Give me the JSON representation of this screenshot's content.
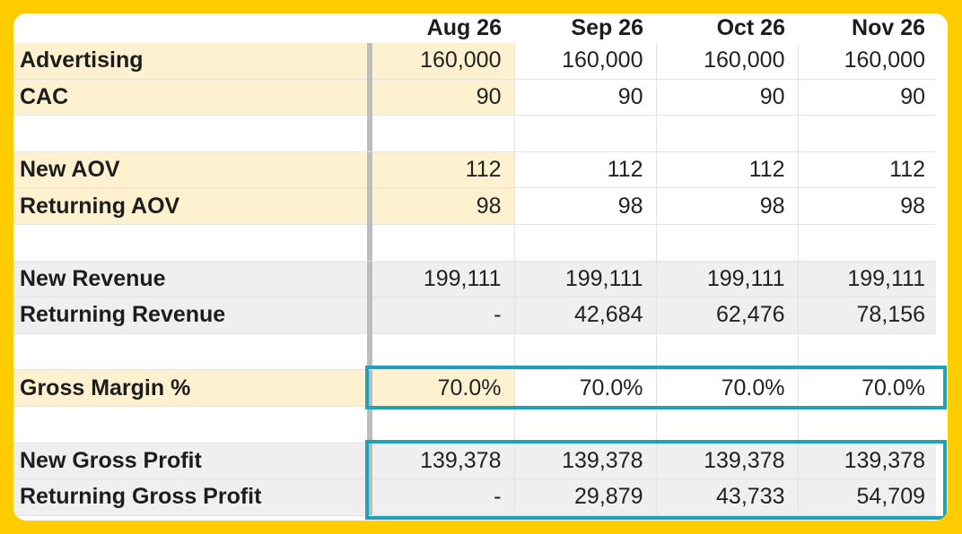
{
  "columns": [
    "Aug 26",
    "Sep 26",
    "Oct 26",
    "Nov 26"
  ],
  "rows": {
    "advertising": {
      "label": "Advertising",
      "values": [
        "160,000",
        "160,000",
        "160,000",
        "160,000"
      ]
    },
    "cac": {
      "label": "CAC",
      "values": [
        "90",
        "90",
        "90",
        "90"
      ]
    },
    "new_aov": {
      "label": "New AOV",
      "values": [
        "112",
        "112",
        "112",
        "112"
      ]
    },
    "returning_aov": {
      "label": "Returning AOV",
      "values": [
        "98",
        "98",
        "98",
        "98"
      ]
    },
    "new_revenue": {
      "label": "New Revenue",
      "values": [
        "199,111",
        "199,111",
        "199,111",
        "199,111"
      ]
    },
    "returning_revenue": {
      "label": "Returning Revenue",
      "values": [
        "-",
        "42,684",
        "62,476",
        "78,156"
      ]
    },
    "gross_margin": {
      "label": "Gross Margin %",
      "values": [
        "70.0%",
        "70.0%",
        "70.0%",
        "70.0%"
      ]
    },
    "new_gross_profit": {
      "label": "New Gross Profit",
      "values": [
        "139,378",
        "139,378",
        "139,378",
        "139,378"
      ]
    },
    "returning_gross_profit": {
      "label": "Returning Gross Profit",
      "values": [
        "-",
        "29,879",
        "43,733",
        "54,709"
      ]
    }
  },
  "colors": {
    "frame": "#FFCC00",
    "input_highlight": "#FDF1CF",
    "calc_row": "#EFEFEF",
    "annotation_box": "#1EA2B8"
  }
}
